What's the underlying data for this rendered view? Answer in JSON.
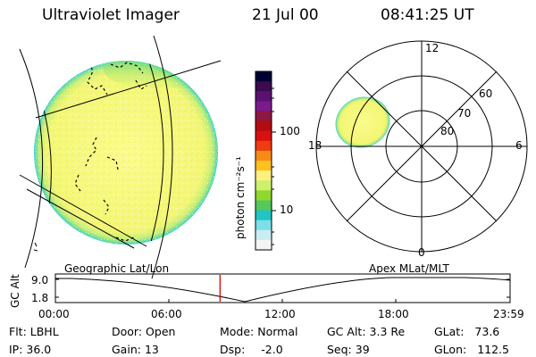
{
  "header": {
    "title": "Ultraviolet Imager",
    "date": "21 Jul 00",
    "time": "08:41:25 UT"
  },
  "colorbar": {
    "unit_label": "photon cm⁻²s⁻¹",
    "tick_labels": [
      "100",
      "10"
    ],
    "colors": [
      "#000033",
      "#3b0a4f",
      "#5a1270",
      "#7a1a8c",
      "#8e1740",
      "#b30c10",
      "#d81010",
      "#f03a10",
      "#f78c14",
      "#ffc020",
      "#fff080",
      "#ccf26b",
      "#8fd82e",
      "#55c85a",
      "#22c4c4",
      "#7cdfe8",
      "#c8eef2",
      "#f4f4f4"
    ]
  },
  "polar": {
    "mlt_labels": [
      "12",
      "18",
      "6",
      "0"
    ],
    "lat_labels": [
      "60",
      "70",
      "80"
    ]
  },
  "timeline": {
    "left_label": "Geographic Lat/Lon",
    "right_label": "Apex MLat/MLT",
    "y_axis_title": "GC Alt",
    "y_tick_labels": [
      "9.0",
      "1.8"
    ],
    "x_tick_labels": [
      "00:00",
      "06:00",
      "12:00",
      "18:00",
      "23:59"
    ],
    "current_time_fraction": 0.362,
    "marker_color": "#e00000",
    "chart_data": {
      "type": "line",
      "ylabel": "GC Alt",
      "ylim": [
        1.8,
        9.0
      ],
      "xlim": [
        "00:00",
        "23:59"
      ]
    }
  },
  "status": {
    "row1": [
      {
        "key": "Flt:",
        "val": "LBHL"
      },
      {
        "key": "Door:",
        "val": "Open"
      },
      {
        "key": "Mode:",
        "val": "Normal"
      },
      {
        "key": "GC Alt:",
        "val": "3.3 Re"
      },
      {
        "key": "GLat:",
        "val": "73.6"
      }
    ],
    "row2": [
      {
        "key": "IP:",
        "val": "36.0"
      },
      {
        "key": "Gain:",
        "val": "13"
      },
      {
        "key": "Dsp:",
        "val": "-2.0"
      },
      {
        "key": "Seq:",
        "val": "39"
      },
      {
        "key": "GLon:",
        "val": "112.5"
      }
    ]
  },
  "colors": {
    "disc_fill": "#f5f57a",
    "disc_edge": "#9fe07a",
    "disc_rim": "#32d2e0",
    "line": "#000000"
  }
}
